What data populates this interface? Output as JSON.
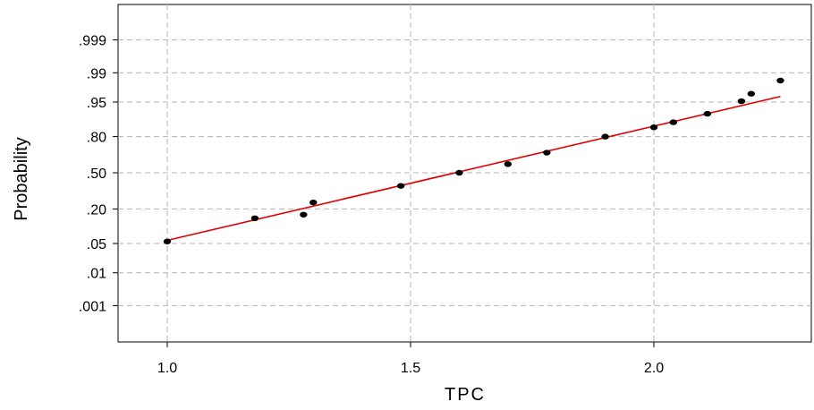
{
  "chart_data": {
    "type": "scatter",
    "subtype": "normal-probability-plot",
    "xlabel": "TPC",
    "ylabel": "Probability",
    "xlim": [
      0.9,
      2.3
    ],
    "x_ticks": [
      1.0,
      1.5,
      2.0
    ],
    "x_tick_labels": [
      "1.0",
      "1.5",
      "2.0"
    ],
    "y_scale": "normal-probability",
    "y_ticks": [
      0.001,
      0.01,
      0.05,
      0.2,
      0.5,
      0.8,
      0.95,
      0.99,
      0.999
    ],
    "y_tick_labels": [
      ".001",
      ".01",
      ".05",
      ".20",
      ".50",
      ".80",
      ".95",
      ".99",
      ".999"
    ],
    "grid": true,
    "points": [
      {
        "x": 1.0,
        "y": 0.055
      },
      {
        "x": 1.18,
        "y": 0.145
      },
      {
        "x": 1.28,
        "y": 0.165
      },
      {
        "x": 1.3,
        "y": 0.245
      },
      {
        "x": 1.48,
        "y": 0.38
      },
      {
        "x": 1.6,
        "y": 0.5
      },
      {
        "x": 1.7,
        "y": 0.58
      },
      {
        "x": 1.78,
        "y": 0.68
      },
      {
        "x": 1.9,
        "y": 0.8
      },
      {
        "x": 2.0,
        "y": 0.855
      },
      {
        "x": 2.04,
        "y": 0.88
      },
      {
        "x": 2.11,
        "y": 0.915
      },
      {
        "x": 2.18,
        "y": 0.952
      },
      {
        "x": 2.2,
        "y": 0.967
      },
      {
        "x": 2.26,
        "y": 0.984
      }
    ],
    "fit_line": {
      "x": [
        1.0,
        2.26
      ],
      "y": [
        0.058,
        0.962
      ]
    },
    "colors": {
      "points": "#000000",
      "fit_line": "#e00000",
      "grid": "#b4b4b4",
      "axis": "#000000"
    }
  }
}
